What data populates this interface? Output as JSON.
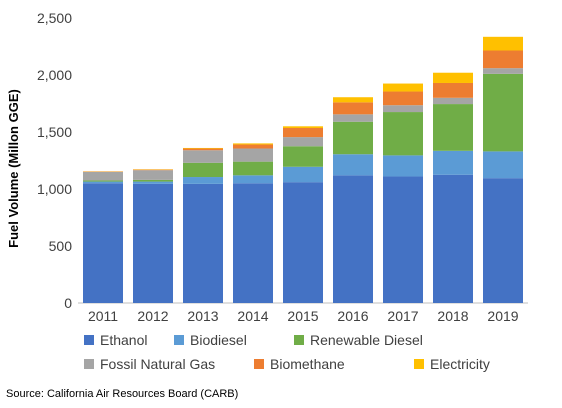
{
  "chart_data": {
    "type": "bar",
    "stacked": true,
    "title": "",
    "xlabel": "",
    "ylabel": "Fuel Volume (Millon GGE)",
    "ylim": [
      0,
      2500
    ],
    "yticks": [
      "0",
      "500",
      "1,000",
      "1,500",
      "2,000",
      "2,500"
    ],
    "grid": false,
    "legend_position": "bottom",
    "categories": [
      "2011",
      "2012",
      "2013",
      "2014",
      "2015",
      "2016",
      "2017",
      "2018",
      "2019"
    ],
    "series": [
      {
        "name": "Ethanol",
        "color": "#4472c4",
        "values": [
          1050,
          1045,
          1045,
          1050,
          1060,
          1120,
          1110,
          1125,
          1095
        ]
      },
      {
        "name": "Biodiesel",
        "color": "#5b9bd5",
        "values": [
          15,
          20,
          60,
          70,
          135,
          185,
          185,
          210,
          235
        ]
      },
      {
        "name": "Renewable Diesel",
        "color": "#70ad47",
        "values": [
          10,
          15,
          125,
          120,
          180,
          285,
          380,
          410,
          680
        ]
      },
      {
        "name": "Fossil Natural Gas",
        "color": "#a5a5a5",
        "values": [
          75,
          85,
          110,
          115,
          80,
          65,
          60,
          55,
          50
        ]
      },
      {
        "name": "Biomethane",
        "color": "#ed7d31",
        "values": [
          3,
          5,
          15,
          35,
          80,
          105,
          120,
          130,
          155
        ]
      },
      {
        "name": "Electricity",
        "color": "#ffc000",
        "values": [
          2,
          3,
          5,
          10,
          15,
          45,
          70,
          90,
          120
        ]
      }
    ]
  },
  "source": "Source: California Air Resources Board (CARB)"
}
